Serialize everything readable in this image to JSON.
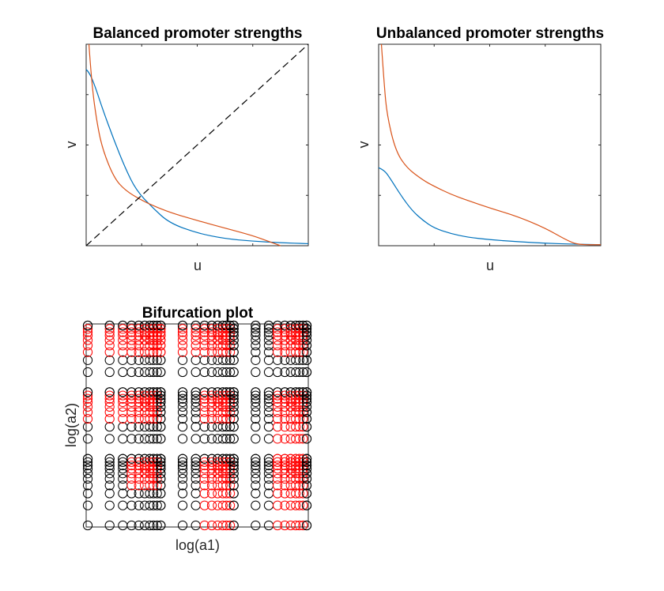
{
  "figure": {
    "panel1": {
      "title": "Balanced promoter strengths",
      "xlabel": "u",
      "ylabel": "v"
    },
    "panel2": {
      "title": "Unbalanced promoter strengths",
      "xlabel": "u",
      "ylabel": "v"
    },
    "panel3": {
      "title": "Bifurcation plot",
      "xlabel": "log(a1)",
      "ylabel": "log(a2)"
    }
  },
  "chart_data": [
    {
      "type": "line",
      "title": "Balanced promoter strengths",
      "xlabel": "u",
      "ylabel": "v",
      "xlim": [
        0,
        4
      ],
      "ylim": [
        0,
        4
      ],
      "grid": false,
      "legend": "none",
      "series": [
        {
          "color": "#0072BD",
          "x": [
            0,
            0.05,
            0.15,
            0.3,
            0.5,
            0.7,
            0.9,
            1.2,
            1.5,
            2.0,
            2.5,
            3.0,
            3.5,
            4.0
          ],
          "y": [
            3.5,
            3.45,
            3.2,
            2.7,
            2.1,
            1.55,
            1.1,
            0.75,
            0.45,
            0.25,
            0.14,
            0.09,
            0.06,
            0.04
          ]
        },
        {
          "color": "#D95319",
          "x": [
            0.05,
            0.1,
            0.2,
            0.3,
            0.5,
            0.7,
            1.0,
            1.3,
            1.6,
            2.0,
            2.5,
            3.0,
            3.3,
            3.5
          ],
          "y": [
            4.0,
            3.2,
            2.4,
            1.9,
            1.35,
            1.1,
            0.9,
            0.75,
            0.63,
            0.5,
            0.35,
            0.2,
            0.08,
            0.0
          ]
        },
        {
          "color": "#000000",
          "dashed": true,
          "x": [
            0,
            4
          ],
          "y": [
            0,
            4
          ]
        }
      ]
    },
    {
      "type": "line",
      "title": "Unbalanced promoter strengths",
      "xlabel": "u",
      "ylabel": "v",
      "xlim": [
        0,
        4
      ],
      "ylim": [
        0,
        4
      ],
      "grid": false,
      "legend": "none",
      "series": [
        {
          "color": "#0072BD",
          "x": [
            0,
            0.1,
            0.2,
            0.4,
            0.6,
            0.8,
            1.0,
            1.3,
            1.6,
            2.0,
            2.5,
            3.0,
            3.5,
            4.0
          ],
          "y": [
            1.55,
            1.5,
            1.35,
            1.0,
            0.7,
            0.5,
            0.35,
            0.24,
            0.17,
            0.12,
            0.08,
            0.05,
            0.03,
            0.02
          ]
        },
        {
          "color": "#D95319",
          "x": [
            0.05,
            0.1,
            0.15,
            0.3,
            0.5,
            0.8,
            1.0,
            1.3,
            1.6,
            2.0,
            2.5,
            3.0,
            3.4,
            3.6,
            4.0
          ],
          "y": [
            4.0,
            3.2,
            2.6,
            1.9,
            1.55,
            1.3,
            1.18,
            1.02,
            0.9,
            0.75,
            0.58,
            0.35,
            0.1,
            0.02,
            0.02
          ]
        }
      ]
    },
    {
      "type": "scatter",
      "title": "Bifurcation plot",
      "xlabel": "log(a1)",
      "ylabel": "log(a2)",
      "xlim": [
        0,
        3
      ],
      "ylim": [
        0,
        3
      ],
      "grid": false,
      "legend": "none",
      "marker": "open-circle",
      "levels": [
        0.0,
        0.3,
        0.48,
        0.6,
        0.7,
        0.78,
        0.85,
        0.9,
        0.95,
        1.0
      ],
      "decades": 3,
      "series": [
        {
          "name": "",
          "color": "#000000",
          "rule": "not bistable"
        },
        {
          "name": "",
          "color": "#FF0000",
          "rule": "bistable region"
        }
      ]
    }
  ]
}
